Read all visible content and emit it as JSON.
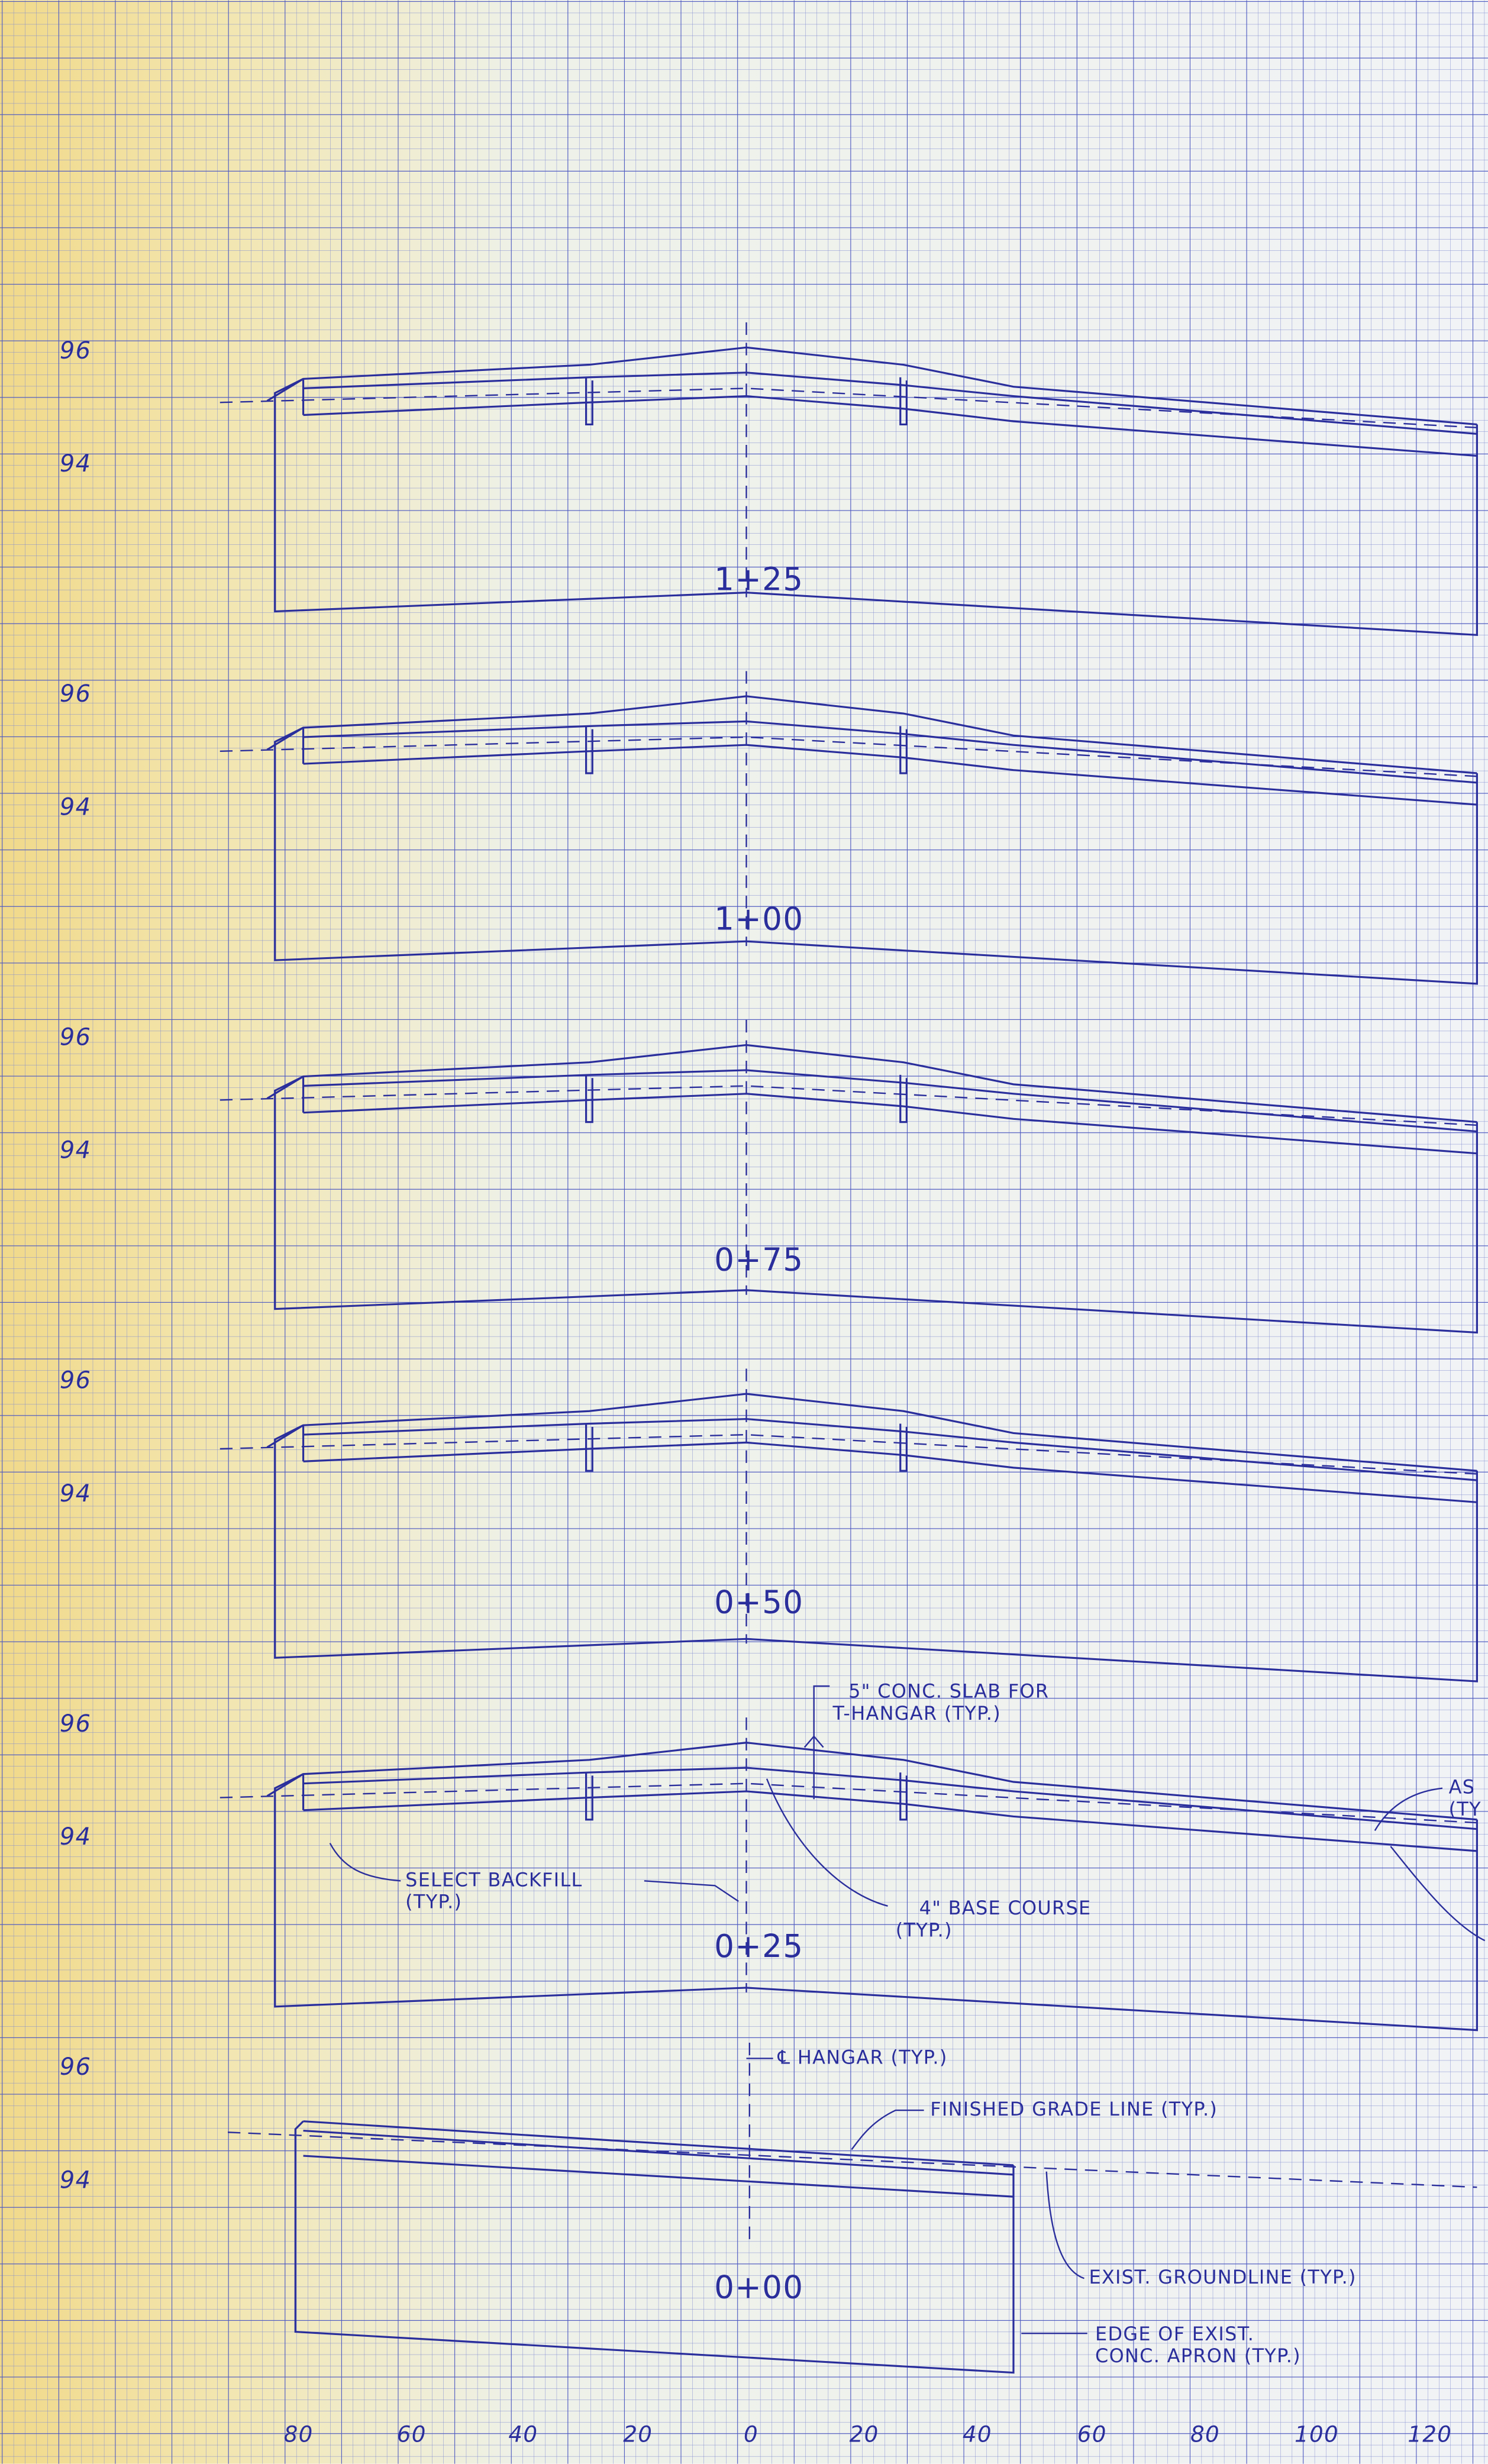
{
  "elevation_labels": [
    "96",
    "94",
    "96",
    "94",
    "96",
    "94",
    "96",
    "94",
    "96",
    "94",
    "96",
    "94"
  ],
  "stations": [
    "1+25",
    "1+00",
    "0+75",
    "0+50",
    "0+25",
    "0+00"
  ],
  "annotations": {
    "slab": [
      "5\" CONC. SLAB FOR",
      "T-HANGAR (TYP.)"
    ],
    "asphalt": [
      "AS",
      "(TY"
    ],
    "backfill": [
      "SELECT BACKFILL",
      "(TYP.)"
    ],
    "base": [
      "4\" BASE COURSE",
      "(TYP.)"
    ],
    "centerline": "℄ HANGAR (TYP.)",
    "finished_grade": "FINISHED GRADE LINE (TYP.)",
    "groundline": "EXIST. GROUNDLINE (TYP.)",
    "apron": [
      "EDGE OF EXIST.",
      "CONC. APRON (TYP.)"
    ]
  },
  "offset_labels": [
    "80",
    "60",
    "40",
    "20",
    "0",
    "20",
    "40",
    "60",
    "80",
    "100",
    "120"
  ]
}
